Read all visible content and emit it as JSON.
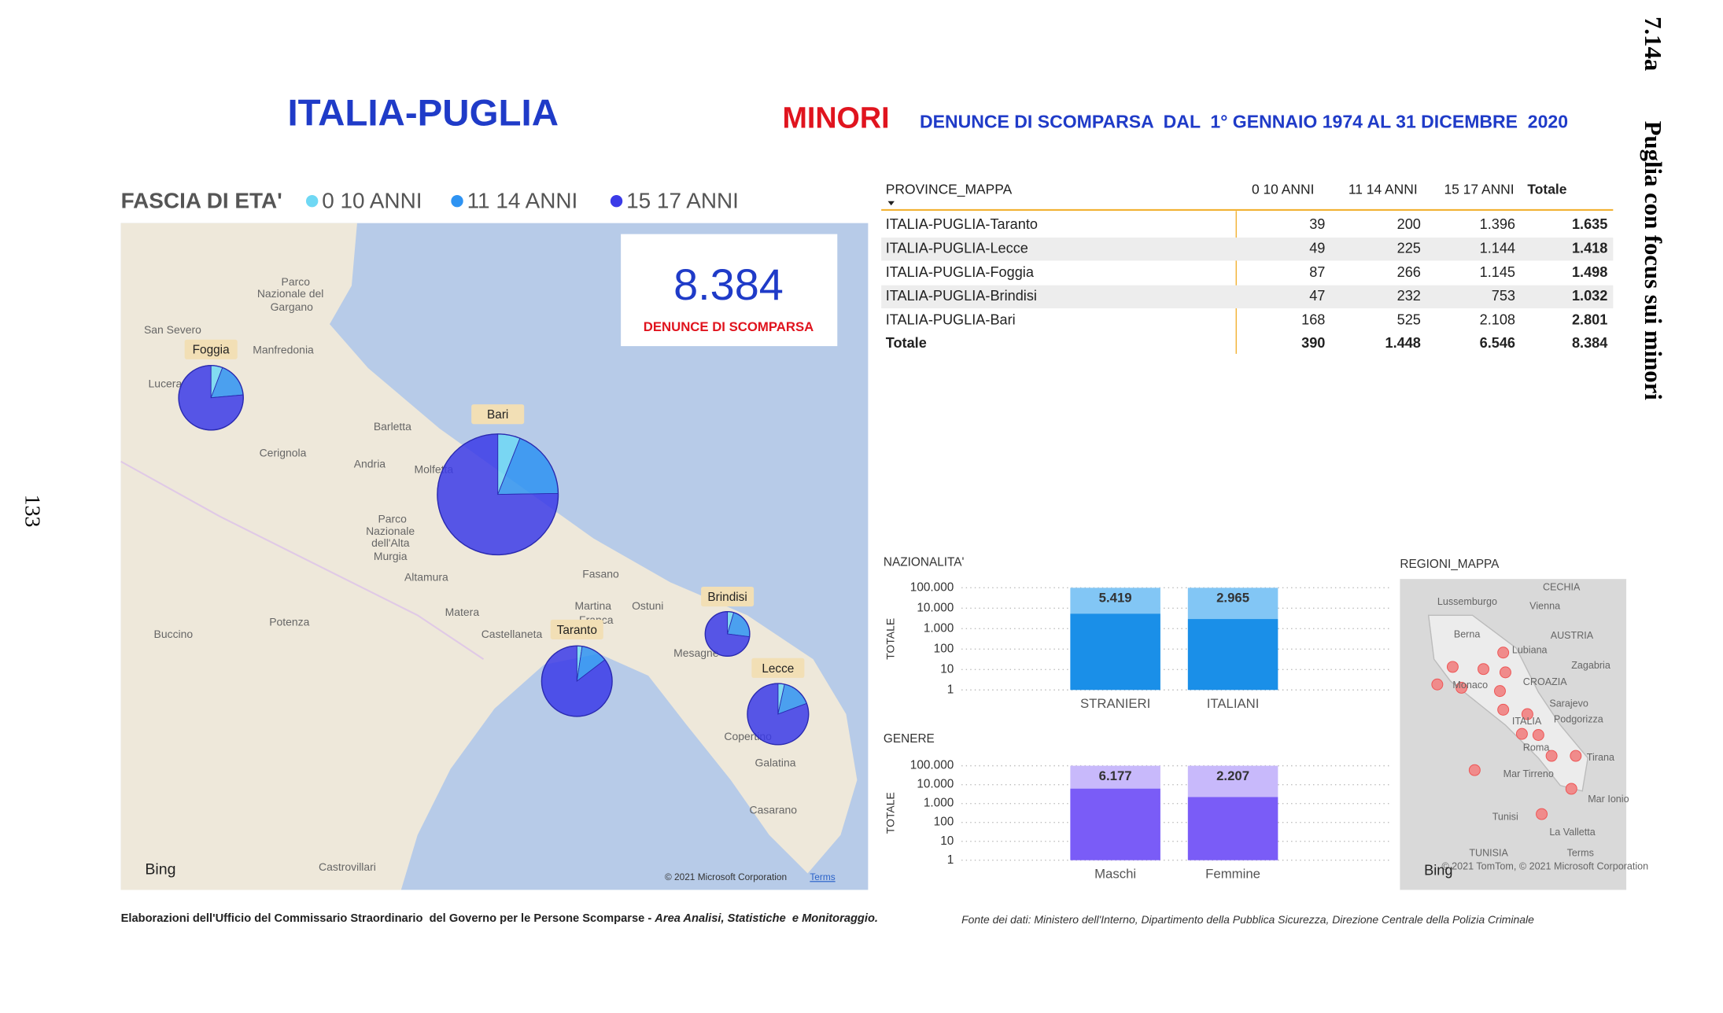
{
  "header": {
    "title": "ITALIA-PUGLIA",
    "highlight": "MINORI",
    "subtitle": "DENUNCE DI SCOMPARSA  DAL  1° GENNAIO 1974 AL 31 DICEMBRE  2020"
  },
  "side": {
    "section": "7.14a",
    "heading": "Puglia con focus sui minori",
    "page": "133"
  },
  "map": {
    "type": "pie",
    "legend_title": "FASCIA DI ETA'",
    "series": [
      {
        "name": "0 10 ANNI",
        "color": "#6fd8f4"
      },
      {
        "name": "11 14 ANNI",
        "color": "#2e93f2"
      },
      {
        "name": "15 17 ANNI",
        "color": "#3b3be8"
      }
    ],
    "kpi": {
      "value": "8.384",
      "label": "DENUNCE DI SCOMPARSA"
    },
    "bubble_labels": [
      "Foggia",
      "Bari",
      "Taranto",
      "Brindisi",
      "Lecce"
    ],
    "places": [
      "San Severo",
      "Manfredonia",
      "Lucera",
      "Barletta",
      "Andria",
      "Cerignola",
      "Molfetta",
      "Altamura",
      "Matera",
      "Fasano",
      "Martina",
      "Ostuni",
      "Franca",
      "Castellaneta",
      "Mesagne",
      "Copertino",
      "Galatina",
      "Casarano",
      "Potenza",
      "Buccino",
      "Castrovillari",
      "Parco",
      "Nazionale del",
      "Gargano",
      "Parco",
      "Nazionale",
      "dell'Alta",
      "Murgia"
    ],
    "provider": "Bing",
    "attribution": "© 2021 Microsoft Corporation",
    "terms": "Terms"
  },
  "table": {
    "columns": [
      "PROVINCE_MAPPA",
      "0 10 ANNI",
      "11 14 ANNI",
      "15 17 ANNI",
      "Totale"
    ],
    "rows": [
      [
        "ITALIA-PUGLIA-Taranto",
        39,
        200,
        {
          "value": 1396,
          "label": "1.396"
        },
        {
          "value": 1635,
          "label": "1.635"
        }
      ],
      [
        "ITALIA-PUGLIA-Lecce",
        49,
        225,
        {
          "value": 1144,
          "label": "1.144"
        },
        {
          "value": 1418,
          "label": "1.418"
        }
      ],
      [
        "ITALIA-PUGLIA-Foggia",
        87,
        266,
        {
          "value": 1145,
          "label": "1.145"
        },
        {
          "value": 1498,
          "label": "1.498"
        }
      ],
      [
        "ITALIA-PUGLIA-Brindisi",
        47,
        232,
        753,
        {
          "value": 1032,
          "label": "1.032"
        }
      ],
      [
        "ITALIA-PUGLIA-Bari",
        168,
        525,
        {
          "value": 2108,
          "label": "2.108"
        },
        {
          "value": 2801,
          "label": "2.801"
        }
      ]
    ],
    "total": [
      "Totale",
      390,
      {
        "value": 1448,
        "label": "1.448"
      },
      {
        "value": 6546,
        "label": "6.546"
      },
      {
        "value": 8384,
        "label": "8.384"
      }
    ]
  },
  "chart_data": [
    {
      "type": "bar",
      "title": "NAZIONALITA'",
      "y_label": "TOTALE",
      "categories": [
        "STRANIERI",
        "ITALIANI"
      ],
      "values": [
        5419,
        2965
      ],
      "value_labels": [
        "5.419",
        "2.965"
      ],
      "color": "#1a8fe8",
      "label_color": "#82c6f5",
      "log": true,
      "grid": true,
      "ylim": [
        1,
        100000
      ],
      "yticks": [
        {
          "value": 100000,
          "label": "100.000"
        },
        {
          "value": 10000,
          "label": "10.000"
        },
        {
          "value": 1000,
          "label": "1.000"
        },
        100,
        10,
        1
      ]
    },
    {
      "type": "bar",
      "title": "GENERE",
      "y_label": "TOTALE",
      "categories": [
        "Maschi",
        "Femmine"
      ],
      "values": [
        6177,
        2207
      ],
      "value_labels": [
        "6.177",
        "2.207"
      ],
      "color": "#7a5cf7",
      "label_color": "#c8b9fb",
      "log": true,
      "grid": true,
      "ylim": [
        1,
        100000
      ],
      "yticks": [
        {
          "value": 100000,
          "label": "100.000"
        },
        {
          "value": 10000,
          "label": "10.000"
        },
        {
          "value": 1000,
          "label": "1.000"
        },
        100,
        10,
        1
      ]
    }
  ],
  "regions_map": {
    "title": "REGIONI_MAPPA",
    "labels": [
      "CECHIA",
      "Vienna",
      "Lussemburgo",
      "Berna",
      "AUSTRIA",
      "Lubiana",
      "Zagabria",
      "Monaco",
      "CROAZIA",
      "Sarajevo",
      "ITALIA",
      "Podgorizza",
      "Roma",
      "Tirana",
      "Mar Tirreno",
      "Mar Ionio",
      "Tunisi",
      "La Valletta",
      "TUNISIA",
      "Terms",
      "© 2021 TomTom, © 2021 Microsoft Corporation",
      "Bing"
    ]
  },
  "footer": {
    "credit": "Elaborazioni dell'Ufficio del Commissario Straordinario  del Governo per le Persone Scomparse - ",
    "credit_italic": "Area Analisi, Statistiche  e Monitoraggio.",
    "source": "Fonte dei dati: Ministero dell'Interno, Dipartimento della Pubblica Sicurezza, Direzione Centrale della Polizia Criminale"
  }
}
